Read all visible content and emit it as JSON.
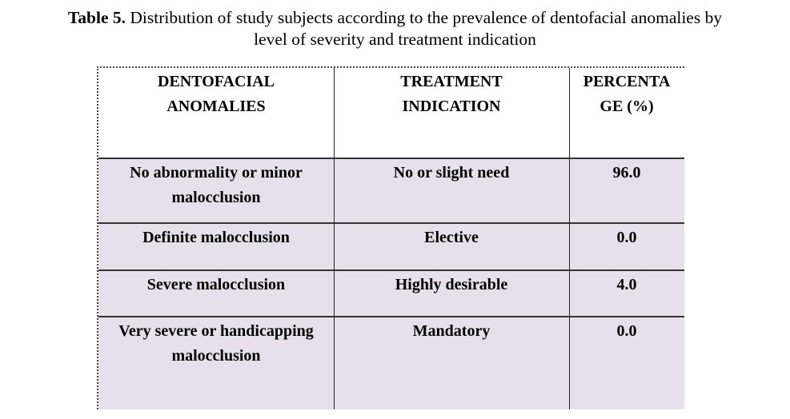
{
  "caption": {
    "label": "Table 5.",
    "text_line1": " Distribution of study subjects according to the prevalence of dentofacial anomalies by",
    "text_line2": "level of severity and treatment indication"
  },
  "table": {
    "headers": [
      {
        "lines": [
          "DENTOFACIAL",
          "ANOMALIES"
        ]
      },
      {
        "lines": [
          "TREATMENT",
          "INDICATION"
        ]
      },
      {
        "lines": [
          "PERCENTA",
          "GE (%)"
        ]
      }
    ],
    "rows": [
      {
        "anomaly": [
          "No abnormality or minor",
          "malocclusion"
        ],
        "treatment": "No or slight need",
        "percentage": "96.0"
      },
      {
        "anomaly": [
          "Definite malocclusion"
        ],
        "treatment": "Elective",
        "percentage": "0.0"
      },
      {
        "anomaly": [
          "Severe malocclusion"
        ],
        "treatment": "Highly desirable",
        "percentage": "4.0"
      },
      {
        "anomaly": [
          "Very severe or handicapping",
          "malocclusion"
        ],
        "treatment": "Mandatory",
        "percentage": "0.0"
      }
    ],
    "row_fill": "#e5e0ec"
  }
}
